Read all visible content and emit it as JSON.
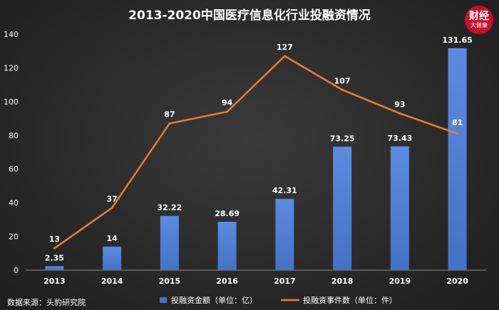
{
  "watermark": {
    "top": "财经",
    "bottom": "大健康"
  },
  "colors": {
    "bar": "#4472c4",
    "line": "#ed7d31",
    "text": "#ffffff",
    "axis": "#d9d9d9"
  },
  "chart_data": {
    "type": "bar",
    "title": "2013-2020中国医疗信息化行业投融资情况",
    "source": "数据来源：头豹研究院",
    "categories": [
      "2013",
      "2014",
      "2015",
      "2016",
      "2017",
      "2018",
      "2019",
      "2020"
    ],
    "ylim": [
      0,
      140
    ],
    "yticks": [
      0,
      20,
      40,
      60,
      80,
      100,
      120,
      140
    ],
    "grid": false,
    "legend_position": "bottom",
    "series": [
      {
        "name": "投融资金额（单位：亿）",
        "kind": "bar",
        "values": [
          2.35,
          14,
          32.22,
          28.69,
          42.31,
          73.25,
          73.43,
          131.65
        ],
        "labels": [
          "2.35",
          "14",
          "32.22",
          "28.69",
          "42.31",
          "73.25",
          "73.43",
          "131.65"
        ]
      },
      {
        "name": "投融资事件数（单位：件）",
        "kind": "line",
        "values": [
          13,
          37,
          87,
          94,
          127,
          107,
          93,
          81
        ],
        "labels": [
          "13",
          "37",
          "87",
          "94",
          "127",
          "107",
          "93",
          "81"
        ]
      }
    ]
  }
}
